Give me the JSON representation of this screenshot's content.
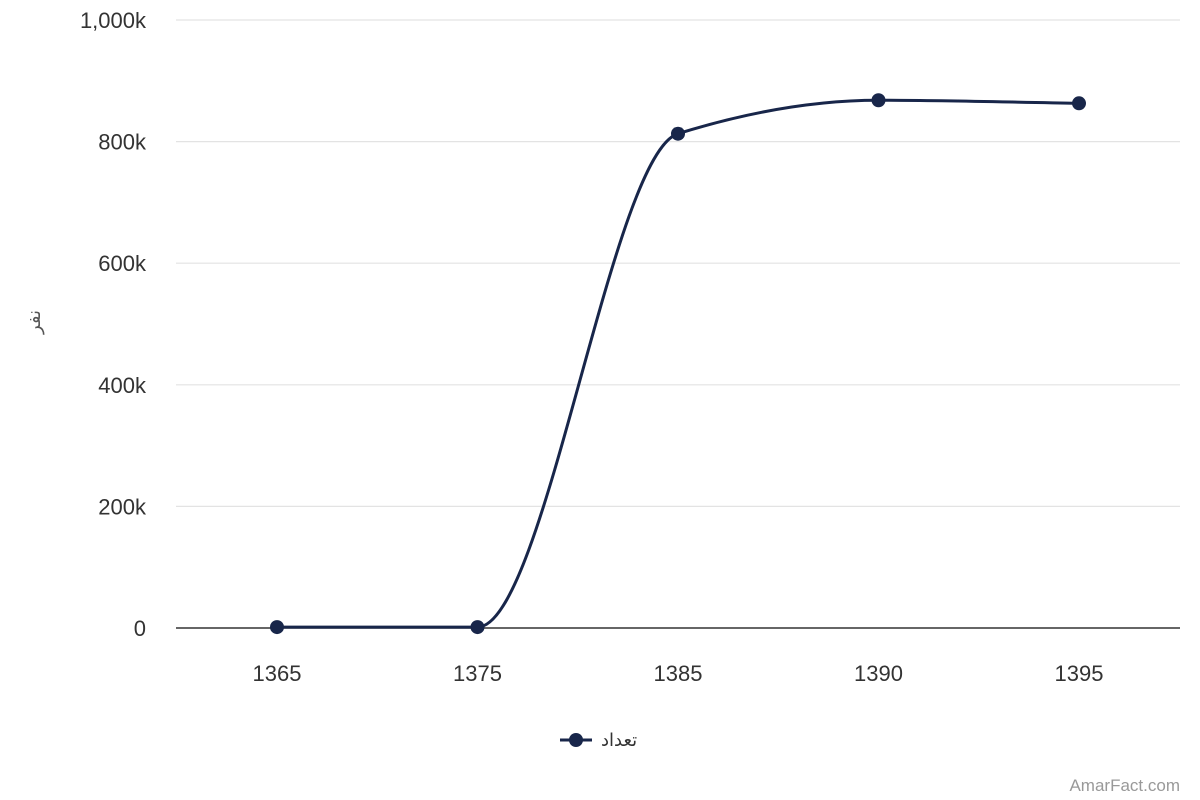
{
  "chart_data": {
    "type": "line",
    "x": [
      "1365",
      "1375",
      "1385",
      "1390",
      "1395"
    ],
    "series": [
      {
        "name": "تعداد",
        "values": [
          1500,
          1500,
          813000,
          868000,
          863000
        ],
        "color": "#18264a"
      }
    ],
    "ylabel": "نفر",
    "xlabel": "",
    "ylim": [
      0,
      1000000
    ],
    "yticks": [
      "0",
      "200k",
      "400k",
      "600k",
      "800k",
      "1,000k"
    ],
    "grid": true,
    "smooth": true,
    "legend_position": "bottom-center"
  },
  "credit": "AmarFact.com"
}
